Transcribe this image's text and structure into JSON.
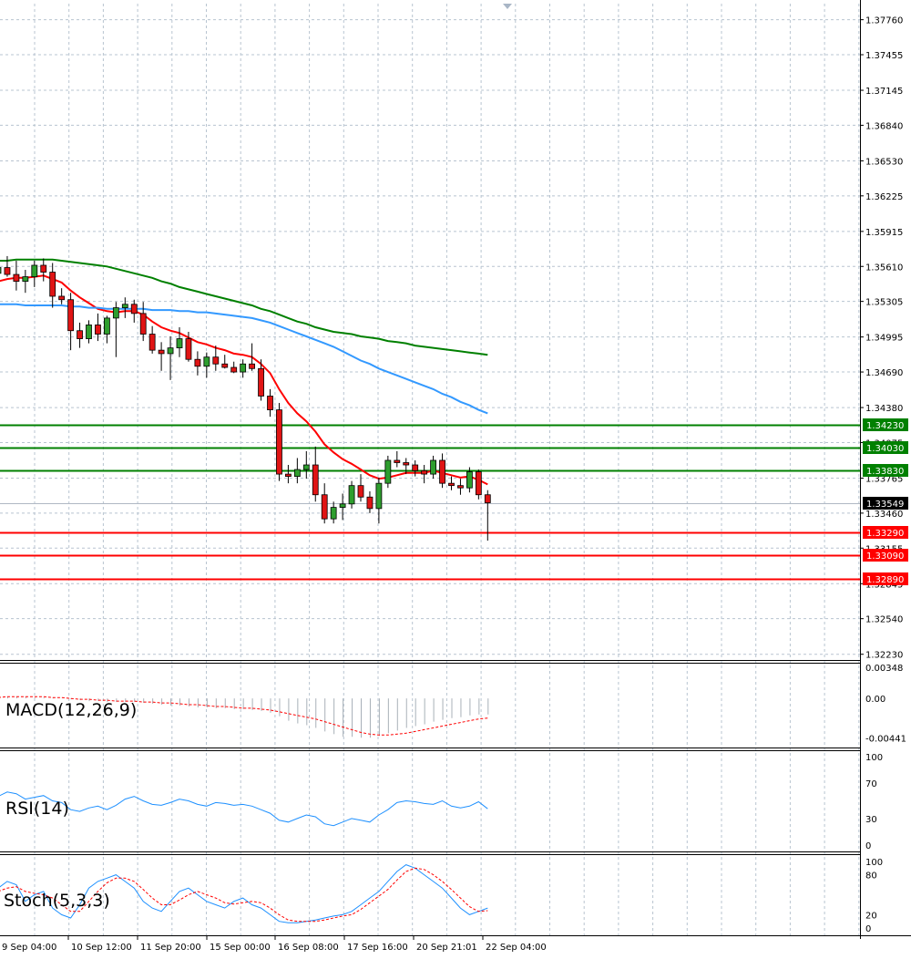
{
  "chart_data": {
    "type": "candlestick",
    "instrument_scale": {
      "price_ticks": [
        "1.37760",
        "1.37455",
        "1.37145",
        "1.36840",
        "1.36530",
        "1.36225",
        "1.35915",
        "1.35610",
        "1.35305",
        "1.34995",
        "1.34690",
        "1.34380",
        "1.34075",
        "1.33765",
        "1.33460",
        "1.33155",
        "1.32845",
        "1.32540",
        "1.32230"
      ],
      "price_range": [
        1.3218,
        1.379
      ],
      "x_labels": [
        "9 Sep 04:00",
        "10 Sep 12:00",
        "11 Sep 20:00",
        "15 Sep 00:00",
        "16 Sep 08:00",
        "17 Sep 16:00",
        "20 Sep 21:01",
        "22 Sep 04:00"
      ],
      "grid": true
    },
    "candles": [
      [
        1.3555,
        1.3565,
        1.3545,
        1.356
      ],
      [
        1.356,
        1.357,
        1.3552,
        1.3554
      ],
      [
        1.3554,
        1.3566,
        1.354,
        1.3548
      ],
      [
        1.3548,
        1.3558,
        1.3538,
        1.3552
      ],
      [
        1.3552,
        1.3566,
        1.3543,
        1.3562
      ],
      [
        1.3562,
        1.3568,
        1.3548,
        1.3556
      ],
      [
        1.3556,
        1.3564,
        1.3525,
        1.3535
      ],
      [
        1.3535,
        1.3542,
        1.3528,
        1.3532
      ],
      [
        1.3532,
        1.3538,
        1.3488,
        1.3505
      ],
      [
        1.3505,
        1.3512,
        1.349,
        1.3498
      ],
      [
        1.3498,
        1.3514,
        1.3494,
        1.351
      ],
      [
        1.351,
        1.352,
        1.3496,
        1.3502
      ],
      [
        1.3502,
        1.3518,
        1.3494,
        1.3516
      ],
      [
        1.3516,
        1.353,
        1.3482,
        1.3525
      ],
      [
        1.3525,
        1.3534,
        1.3516,
        1.3528
      ],
      [
        1.3528,
        1.3532,
        1.3512,
        1.352
      ],
      [
        1.352,
        1.353,
        1.3496,
        1.3502
      ],
      [
        1.3502,
        1.3509,
        1.3485,
        1.3488
      ],
      [
        1.3488,
        1.3495,
        1.347,
        1.3485
      ],
      [
        1.3485,
        1.35,
        1.3462,
        1.349
      ],
      [
        1.349,
        1.3508,
        1.3482,
        1.3498
      ],
      [
        1.3498,
        1.3504,
        1.3478,
        1.348
      ],
      [
        1.348,
        1.3487,
        1.3466,
        1.3474
      ],
      [
        1.3474,
        1.3486,
        1.3464,
        1.3482
      ],
      [
        1.3482,
        1.3492,
        1.347,
        1.3476
      ],
      [
        1.3476,
        1.3484,
        1.3472,
        1.3473
      ],
      [
        1.3473,
        1.3478,
        1.3468,
        1.3469
      ],
      [
        1.3469,
        1.348,
        1.3464,
        1.3476
      ],
      [
        1.3476,
        1.3494,
        1.347,
        1.3472
      ],
      [
        1.3472,
        1.348,
        1.3444,
        1.3448
      ],
      [
        1.3448,
        1.3454,
        1.343,
        1.3436
      ],
      [
        1.3436,
        1.3442,
        1.3374,
        1.338
      ],
      [
        1.338,
        1.3388,
        1.3372,
        1.3378
      ],
      [
        1.3378,
        1.3394,
        1.3372,
        1.3384
      ],
      [
        1.3384,
        1.34,
        1.3376,
        1.3388
      ],
      [
        1.3388,
        1.3404,
        1.3356,
        1.3362
      ],
      [
        1.3362,
        1.3372,
        1.3337,
        1.3341
      ],
      [
        1.3341,
        1.3356,
        1.3337,
        1.3351
      ],
      [
        1.3351,
        1.3363,
        1.334,
        1.3354
      ],
      [
        1.3354,
        1.3374,
        1.335,
        1.337
      ],
      [
        1.337,
        1.338,
        1.3356,
        1.336
      ],
      [
        1.336,
        1.3365,
        1.3346,
        1.335
      ],
      [
        1.335,
        1.3377,
        1.3337,
        1.3372
      ],
      [
        1.3372,
        1.3396,
        1.3368,
        1.3392
      ],
      [
        1.3392,
        1.34,
        1.3386,
        1.339
      ],
      [
        1.339,
        1.3394,
        1.338,
        1.3388
      ],
      [
        1.3388,
        1.3392,
        1.3378,
        1.3383
      ],
      [
        1.3383,
        1.3388,
        1.3372,
        1.338
      ],
      [
        1.338,
        1.3396,
        1.3376,
        1.3392
      ],
      [
        1.3392,
        1.3398,
        1.3368,
        1.3372
      ],
      [
        1.3372,
        1.3378,
        1.3366,
        1.337
      ],
      [
        1.337,
        1.3376,
        1.3362,
        1.3368
      ],
      [
        1.3368,
        1.3386,
        1.3364,
        1.3382
      ],
      [
        1.3382,
        1.3384,
        1.3358,
        1.3362
      ],
      [
        1.3362,
        1.3366,
        1.3322,
        1.3355
      ]
    ],
    "moving_averages": [
      {
        "color": "#ff0000",
        "values": [
          1.3548,
          1.355,
          1.3551,
          1.3551,
          1.3552,
          1.3553,
          1.355,
          1.3547,
          1.354,
          1.3534,
          1.3529,
          1.3524,
          1.3522,
          1.3521,
          1.3522,
          1.3522,
          1.3519,
          1.3513,
          1.3508,
          1.3505,
          1.3503,
          1.3499,
          1.3495,
          1.3493,
          1.349,
          1.3488,
          1.3485,
          1.3484,
          1.3482,
          1.3476,
          1.3468,
          1.3454,
          1.3442,
          1.3433,
          1.3426,
          1.3417,
          1.3406,
          1.3399,
          1.3393,
          1.3389,
          1.3384,
          1.3379,
          1.3376,
          1.3377,
          1.3379,
          1.3381,
          1.3381,
          1.3381,
          1.3383,
          1.3381,
          1.3379,
          1.3377,
          1.3378,
          1.3375,
          1.3371
        ]
      },
      {
        "color": "#3399ff",
        "values": [
          1.3528,
          1.3528,
          1.3528,
          1.3527,
          1.3527,
          1.3527,
          1.3527,
          1.3527,
          1.3526,
          1.3526,
          1.3525,
          1.3525,
          1.3524,
          1.3524,
          1.3524,
          1.3524,
          1.3524,
          1.3523,
          1.3523,
          1.3523,
          1.3522,
          1.3522,
          1.3521,
          1.3521,
          1.352,
          1.3519,
          1.3518,
          1.3517,
          1.3516,
          1.3514,
          1.3512,
          1.3509,
          1.3506,
          1.3503,
          1.35,
          1.3497,
          1.3494,
          1.3491,
          1.3487,
          1.3483,
          1.3479,
          1.3476,
          1.3472,
          1.3469,
          1.3466,
          1.3463,
          1.346,
          1.3457,
          1.3454,
          1.345,
          1.3447,
          1.3443,
          1.344,
          1.3436,
          1.3433
        ]
      },
      {
        "color": "#008000",
        "values": [
          1.3566,
          1.3566,
          1.3567,
          1.3567,
          1.3567,
          1.3567,
          1.3567,
          1.3566,
          1.3565,
          1.3564,
          1.3563,
          1.3562,
          1.3561,
          1.3559,
          1.3557,
          1.3555,
          1.3553,
          1.3551,
          1.3548,
          1.3546,
          1.3543,
          1.3541,
          1.3539,
          1.3537,
          1.3535,
          1.3533,
          1.3531,
          1.3529,
          1.3527,
          1.3524,
          1.3522,
          1.3519,
          1.3516,
          1.3513,
          1.3511,
          1.3508,
          1.3506,
          1.3504,
          1.3503,
          1.3502,
          1.35,
          1.3499,
          1.3498,
          1.3496,
          1.3495,
          1.3494,
          1.3492,
          1.3491,
          1.349,
          1.3489,
          1.3488,
          1.3487,
          1.3486,
          1.3485,
          1.3484
        ]
      }
    ],
    "levels": [
      {
        "value": 1.3423,
        "label": "1.34230",
        "color": "#008000"
      },
      {
        "value": 1.3403,
        "label": "1.34030",
        "color": "#008000"
      },
      {
        "value": 1.3383,
        "label": "1.33830",
        "color": "#008000"
      },
      {
        "value": 1.3329,
        "label": "1.33290",
        "color": "#ff0000"
      },
      {
        "value": 1.3309,
        "label": "1.33090",
        "color": "#ff0000"
      },
      {
        "value": 1.3289,
        "label": "1.32890",
        "color": "#ff0000"
      }
    ],
    "current_price": {
      "value": 1.33549,
      "label": "1.33549"
    },
    "macd": {
      "label": "MACD(12,26,9)",
      "ticks": [
        "0.00348",
        "0.00",
        "-0.00441"
      ],
      "range": [
        -0.0055,
        0.004
      ],
      "histogram": [
        0.0002,
        0.0002,
        0.0002,
        0.0002,
        0.0001,
        0.0001,
        0.0001,
        0.0,
        -0.0001,
        -0.0002,
        -0.0003,
        -0.0003,
        -0.0004,
        -0.0004,
        -0.0004,
        -0.0004,
        -0.0005,
        -0.0006,
        -0.0007,
        -0.0008,
        -0.0008,
        -0.0009,
        -0.001,
        -0.001,
        -0.0011,
        -0.0011,
        -0.0012,
        -0.0012,
        -0.0013,
        -0.0014,
        -0.0016,
        -0.002,
        -0.0025,
        -0.0028,
        -0.003,
        -0.0033,
        -0.0037,
        -0.004,
        -0.0043,
        -0.0043,
        -0.0044,
        -0.0044,
        -0.0042,
        -0.0039,
        -0.0036,
        -0.0033,
        -0.0031,
        -0.0029,
        -0.0026,
        -0.0024,
        -0.0022,
        -0.0021,
        -0.0019,
        -0.0018,
        -0.0018
      ],
      "signal": [
        0.0001,
        0.0002,
        0.0002,
        0.0002,
        0.0002,
        0.0002,
        0.0001,
        0.0001,
        0.0,
        -0.0001,
        -0.0001,
        -0.0002,
        -0.0002,
        -0.0003,
        -0.0003,
        -0.0003,
        -0.0004,
        -0.0004,
        -0.0005,
        -0.0005,
        -0.0006,
        -0.0007,
        -0.0007,
        -0.0008,
        -0.0009,
        -0.0009,
        -0.001,
        -0.0011,
        -0.0011,
        -0.0012,
        -0.0013,
        -0.0015,
        -0.0017,
        -0.0019,
        -0.0021,
        -0.0023,
        -0.0026,
        -0.0029,
        -0.0032,
        -0.0035,
        -0.0038,
        -0.004,
        -0.0041,
        -0.0041,
        -0.004,
        -0.0039,
        -0.0037,
        -0.0035,
        -0.0033,
        -0.0031,
        -0.0029,
        -0.0027,
        -0.0025,
        -0.0023,
        -0.0022
      ]
    },
    "rsi": {
      "label": "RSI(14)",
      "ticks": [
        "100",
        "70",
        "30",
        "0"
      ],
      "range": [
        0,
        100
      ],
      "color": "#1e90ff",
      "values": [
        55,
        60,
        58,
        52,
        54,
        56,
        50,
        48,
        40,
        38,
        42,
        44,
        40,
        45,
        52,
        55,
        50,
        46,
        45,
        48,
        52,
        50,
        46,
        44,
        48,
        47,
        45,
        46,
        44,
        40,
        36,
        28,
        26,
        30,
        34,
        32,
        24,
        22,
        26,
        30,
        28,
        26,
        34,
        40,
        48,
        50,
        49,
        47,
        46,
        50,
        44,
        42,
        44,
        49,
        41
      ]
    },
    "stoch": {
      "label": "Stoch(5,3,3)",
      "ticks": [
        "100",
        "80",
        "20",
        "0"
      ],
      "range": [
        0,
        100
      ],
      "main_color": "#1e90ff",
      "signal_color": "#ff0000",
      "main": [
        60,
        70,
        65,
        40,
        50,
        55,
        30,
        20,
        15,
        35,
        60,
        70,
        75,
        80,
        70,
        60,
        40,
        30,
        25,
        40,
        55,
        60,
        50,
        40,
        35,
        30,
        40,
        45,
        35,
        30,
        20,
        10,
        8,
        8,
        10,
        12,
        15,
        18,
        20,
        25,
        35,
        45,
        55,
        70,
        85,
        95,
        90,
        80,
        70,
        60,
        45,
        30,
        20,
        25,
        30
      ],
      "signal": [
        55,
        60,
        62,
        55,
        52,
        50,
        45,
        35,
        25,
        25,
        40,
        55,
        68,
        75,
        75,
        70,
        58,
        45,
        35,
        35,
        42,
        50,
        55,
        50,
        45,
        38,
        36,
        38,
        40,
        38,
        30,
        20,
        12,
        10,
        10,
        10,
        12,
        15,
        18,
        20,
        28,
        38,
        48,
        58,
        72,
        85,
        90,
        88,
        80,
        70,
        58,
        45,
        32,
        25,
        26
      ]
    }
  }
}
